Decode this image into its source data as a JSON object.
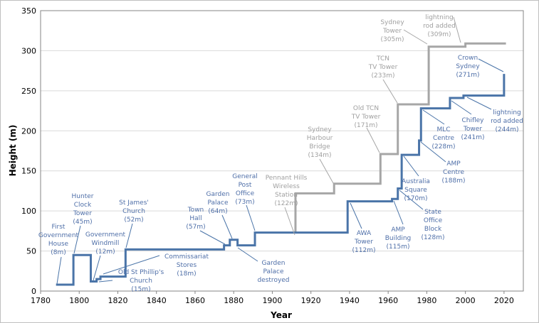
{
  "chart_data": {
    "type": "line",
    "step": true,
    "xlabel": "Year",
    "ylabel": "Height (m)",
    "xlim": [
      1780,
      2030
    ],
    "ylim": [
      0,
      350
    ],
    "xticks": [
      1780,
      1800,
      1820,
      1840,
      1860,
      1880,
      1900,
      1920,
      1940,
      1960,
      1980,
      2000,
      2020
    ],
    "yticks": [
      0,
      50,
      100,
      150,
      200,
      250,
      300,
      350
    ],
    "grid": "horizontal",
    "colors": {
      "buildings": "#4a74a8",
      "structures": "#a6a6a6",
      "buildings_text": "#4f6fa8",
      "structures_text": "#a0a0a0"
    },
    "series": [
      {
        "key": "buildings",
        "x": [
          1788,
          1797,
          1806,
          1809,
          1811,
          1824,
          1875,
          1878,
          1882,
          1891,
          1939,
          1962,
          1965,
          1967,
          1976,
          1977,
          1992,
          1999,
          2020,
          2020
        ],
        "y": [
          8,
          45,
          12,
          15,
          18,
          52,
          57,
          64,
          57,
          73,
          112,
          115,
          128,
          170,
          188,
          228,
          241,
          244,
          244,
          271
        ]
      },
      {
        "key": "structures",
        "x": [
          1912,
          1912,
          1932,
          1956,
          1965,
          1981,
          2000,
          2021
        ],
        "y": [
          73,
          122,
          134,
          171,
          233,
          305,
          309,
          309
        ]
      }
    ],
    "annotations": [
      {
        "series": "buildings",
        "lines": [
          "First",
          "Government",
          "House",
          "(8m)"
        ]
      },
      {
        "series": "buildings",
        "lines": [
          "Hunter",
          "Clock",
          "Tower",
          "(45m)"
        ]
      },
      {
        "series": "buildings",
        "lines": [
          "Government",
          "Windmill",
          "(12m)"
        ]
      },
      {
        "series": "buildings",
        "lines": [
          "St James'",
          "Church",
          "(52m)"
        ]
      },
      {
        "series": "buildings",
        "lines": [
          "Commissariat",
          "Stores",
          "(18m)"
        ]
      },
      {
        "series": "buildings",
        "lines": [
          "Old St Phillip's",
          "Church",
          "(15m)"
        ]
      },
      {
        "series": "buildings",
        "lines": [
          "Town",
          "Hall",
          "(57m)"
        ]
      },
      {
        "series": "buildings",
        "lines": [
          "Garden",
          "Palace",
          "(64m)"
        ]
      },
      {
        "series": "buildings",
        "lines": [
          "General",
          "Post",
          "Office",
          "(73m)"
        ]
      },
      {
        "series": "buildings",
        "lines": [
          "Garden",
          "Palace",
          "destroyed"
        ]
      },
      {
        "series": "structures",
        "lines": [
          "Pennant Hills",
          "Wireless",
          "Station",
          "(122m)"
        ]
      },
      {
        "series": "structures",
        "lines": [
          "Sydney",
          "Harbour",
          "Bridge",
          "(134m)"
        ]
      },
      {
        "series": "structures",
        "lines": [
          "Old TCN",
          "TV Tower",
          "(171m)"
        ]
      },
      {
        "series": "structures",
        "lines": [
          "TCN",
          "TV Tower",
          "(233m)"
        ]
      },
      {
        "series": "structures",
        "lines": [
          "Sydney",
          "Tower",
          "(305m)"
        ]
      },
      {
        "series": "structures",
        "lines": [
          "lightning",
          "rod added",
          "(309m)"
        ]
      },
      {
        "series": "buildings",
        "lines": [
          "Crown",
          "Sydney",
          "(271m)"
        ]
      },
      {
        "series": "buildings",
        "lines": [
          "AWA",
          "Tower",
          "(112m)"
        ]
      },
      {
        "series": "buildings",
        "lines": [
          "AMP",
          "Building",
          "(115m)"
        ]
      },
      {
        "series": "buildings",
        "lines": [
          "State",
          "Office",
          "Block",
          "(128m)"
        ]
      },
      {
        "series": "buildings",
        "lines": [
          "Australia",
          "Square",
          "(170m)"
        ]
      },
      {
        "series": "buildings",
        "lines": [
          "AMP",
          "Centre",
          "(188m)"
        ]
      },
      {
        "series": "buildings",
        "lines": [
          "MLC",
          "Centre",
          "(228m)"
        ]
      },
      {
        "series": "buildings",
        "lines": [
          "Chifley",
          "Tower",
          "(241m)"
        ]
      },
      {
        "series": "buildings",
        "lines": [
          "lightning",
          "rod added",
          "(244m)"
        ]
      }
    ]
  }
}
